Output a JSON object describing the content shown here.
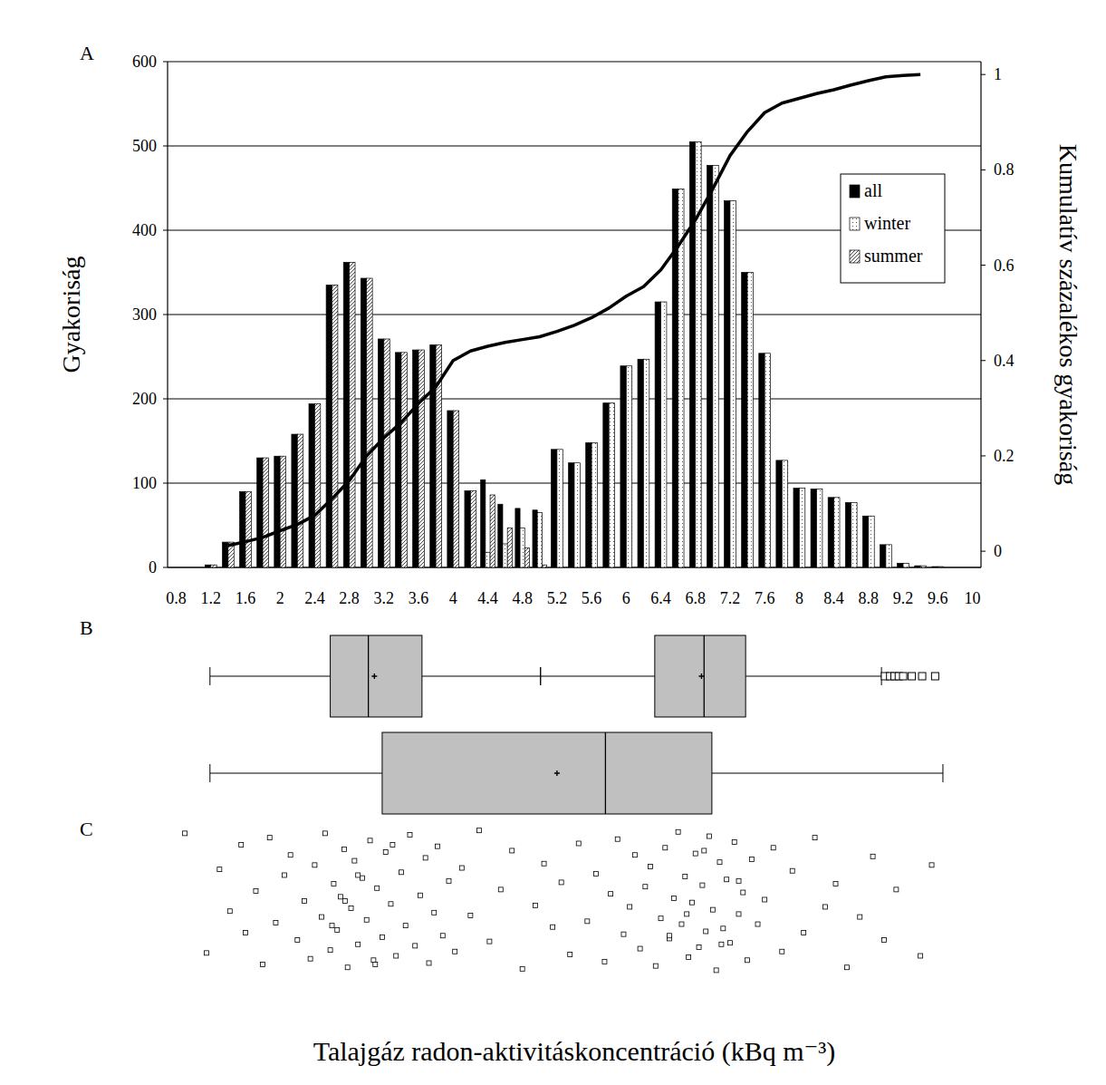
{
  "chart_data": [
    {
      "type": "bar",
      "title": "A",
      "y_label": "Gyakoriság",
      "y2_label": "Kumulatív százalékos gyakoriság",
      "categories": [
        0.8,
        null,
        1.2,
        null,
        1.6,
        null,
        2,
        null,
        2.4,
        null,
        2.8,
        null,
        3.2,
        null,
        3.6,
        null,
        4,
        null,
        4.4,
        null,
        4.8,
        null,
        5.2,
        null,
        5.6,
        null,
        6,
        null,
        6.4,
        null,
        6.8,
        null,
        7.2,
        null,
        7.6,
        null,
        8,
        null,
        8.4,
        null,
        8.8,
        null,
        9.2,
        null,
        9.6,
        null,
        10
      ],
      "series": [
        {
          "name": "all",
          "color": "#000000",
          "values": [
            0,
            0,
            3,
            30,
            90,
            130,
            132,
            158,
            194,
            335,
            362,
            343,
            271,
            255,
            258,
            264,
            186,
            91,
            104,
            75,
            70,
            68,
            140,
            124,
            148,
            195,
            239,
            247,
            315,
            449,
            505,
            477,
            435,
            350,
            254,
            127,
            94,
            93,
            83,
            77,
            61,
            27,
            5,
            2,
            1,
            0,
            0
          ]
        },
        {
          "name": "winter",
          "color": "#ffffff",
          "values": [
            0,
            0,
            0,
            0,
            0,
            0,
            0,
            0,
            0,
            0,
            0,
            0,
            0,
            0,
            0,
            0,
            0,
            0,
            18,
            28,
            47,
            65,
            140,
            124,
            148,
            195,
            239,
            247,
            315,
            449,
            505,
            477,
            435,
            350,
            254,
            127,
            94,
            93,
            83,
            77,
            61,
            27,
            5,
            2,
            1,
            0,
            0
          ]
        },
        {
          "name": "summer",
          "color": "#ffffff",
          "values": [
            0,
            0,
            3,
            30,
            90,
            130,
            132,
            158,
            194,
            335,
            362,
            343,
            271,
            255,
            258,
            264,
            186,
            91,
            86,
            47,
            23,
            3,
            0,
            0,
            0,
            0,
            0,
            0,
            0,
            0,
            0,
            0,
            0,
            0,
            0,
            0,
            0,
            0,
            0,
            0,
            0,
            0,
            0,
            0,
            0,
            0,
            0
          ]
        },
        {
          "type": "line",
          "axis": "y2",
          "color": "#000000",
          "values": [
            null,
            null,
            null,
            0.012,
            0.02,
            0.029,
            0.043,
            0.056,
            0.075,
            0.11,
            0.148,
            0.2,
            0.238,
            0.27,
            0.31,
            0.345,
            0.4,
            0.42,
            0.43,
            0.438,
            0.444,
            0.45,
            0.461,
            0.474,
            0.49,
            0.51,
            0.535,
            0.555,
            0.59,
            0.64,
            0.695,
            0.76,
            0.83,
            0.88,
            0.92,
            0.94,
            0.95,
            0.96,
            0.968,
            0.978,
            0.987,
            0.995,
            0.998,
            1,
            null,
            null,
            null
          ]
        }
      ],
      "ylim": [
        0,
        600
      ],
      "yticks": [
        0,
        100,
        200,
        300,
        400,
        500,
        600
      ],
      "y2lim": [
        -0.034,
        1.027
      ],
      "y2ticks": [
        0,
        0.2,
        0.4,
        0.6,
        0.8,
        1
      ],
      "grid": true,
      "legend": "upper right"
    },
    {
      "type": "box",
      "title": "B",
      "orientation": "horizontal",
      "tick_labels": false,
      "xlim": [
        0.7,
        10.1
      ],
      "series": [
        {
          "boxes": [
            {
              "whisker_low": 1.19,
              "q1": 2.58,
              "median": 3.02,
              "mean": 3.09,
              "q3": 3.64,
              "whisker_high": 5.01,
              "outliers": []
            },
            {
              "whisker_low": 5.01,
              "q1": 6.33,
              "median": 6.9,
              "mean": 6.87,
              "q3": 7.38,
              "whisker_high": 8.95,
              "outliers": [
                8.99,
                9.05,
                9.1,
                9.15,
                9.2,
                9.3,
                9.42,
                9.57
              ]
            }
          ]
        },
        {
          "boxes": [
            {
              "whisker_low": 1.19,
              "q1": 3.18,
              "median": 5.76,
              "mean": 5.2,
              "q3": 6.99,
              "whisker_high": 9.66,
              "outliers": []
            }
          ]
        }
      ]
    },
    {
      "type": "scatter",
      "title": "C",
      "x_label": "Talajgáz radon-aktivitáskoncentráció (kBq m⁻³)",
      "tick_labels": false,
      "marker": "square",
      "color": "#000000",
      "xlim": [
        0.7,
        10.1
      ],
      "ylim": [
        0,
        1
      ],
      "x": [
        1.15,
        1.3,
        1.42,
        1.55,
        1.6,
        1.72,
        1.8,
        1.88,
        1.95,
        2.05,
        2.12,
        2.2,
        2.28,
        2.35,
        2.4,
        2.48,
        2.52,
        2.58,
        2.62,
        2.66,
        2.7,
        2.74,
        2.78,
        2.82,
        2.86,
        2.9,
        2.95,
        3,
        3.04,
        3.08,
        3.12,
        3.18,
        3.22,
        3.28,
        3.34,
        3.4,
        3.45,
        3.5,
        3.56,
        3.62,
        3.68,
        3.72,
        3.78,
        3.82,
        3.88,
        3.95,
        4.02,
        4.1,
        4.2,
        4.3,
        4.42,
        4.55,
        4.68,
        4.8,
        4.95,
        5.05,
        5.15,
        5.25,
        5.35,
        5.45,
        5.55,
        5.65,
        5.75,
        5.82,
        5.9,
        5.97,
        6.04,
        6.1,
        6.16,
        6.22,
        6.28,
        6.34,
        6.4,
        6.45,
        6.5,
        6.55,
        6.6,
        6.64,
        6.68,
        6.72,
        6.76,
        6.8,
        6.84,
        6.88,
        6.92,
        6.96,
        7,
        7.04,
        7.08,
        7.12,
        7.16,
        7.2,
        7.25,
        7.3,
        7.35,
        7.4,
        7.45,
        7.52,
        7.6,
        7.7,
        7.8,
        7.92,
        8.05,
        8.18,
        8.3,
        8.42,
        8.55,
        8.7,
        8.85,
        8.98,
        9.12,
        0.9,
        9.4,
        9.53,
        2.6,
        2.75,
        2.9,
        3.1,
        3.3,
        6.5,
        6.7,
        6.9,
        7.1,
        7.3
      ],
      "values": [
        0.13,
        0.71,
        0.42,
        0.88,
        0.27,
        0.56,
        0.05,
        0.93,
        0.34,
        0.67,
        0.81,
        0.22,
        0.49,
        0.09,
        0.74,
        0.38,
        0.96,
        0.15,
        0.61,
        0.29,
        0.52,
        0.85,
        0.03,
        0.44,
        0.77,
        0.19,
        0.65,
        0.36,
        0.91,
        0.08,
        0.58,
        0.24,
        0.83,
        0.47,
        0.11,
        0.69,
        0.32,
        0.95,
        0.18,
        0.53,
        0.79,
        0.06,
        0.41,
        0.87,
        0.25,
        0.63,
        0.14,
        0.72,
        0.39,
        0.98,
        0.21,
        0.57,
        0.84,
        0.02,
        0.46,
        0.75,
        0.31,
        0.62,
        0.12,
        0.89,
        0.35,
        0.68,
        0.07,
        0.54,
        0.92,
        0.26,
        0.45,
        0.81,
        0.16,
        0.59,
        0.73,
        0.04,
        0.37,
        0.86,
        0.23,
        0.51,
        0.97,
        0.33,
        0.66,
        0.1,
        0.48,
        0.82,
        0.17,
        0.6,
        0.28,
        0.94,
        0.43,
        0.01,
        0.76,
        0.3,
        0.64,
        0.2,
        0.9,
        0.4,
        0.55,
        0.08,
        0.78,
        0.33,
        0.5,
        0.86,
        0.14,
        0.7,
        0.27,
        0.93,
        0.45,
        0.61,
        0.03,
        0.38,
        0.8,
        0.22,
        0.57,
        0.96,
        0.11,
        0.74,
        0.32,
        0.49,
        0.67,
        0.05,
        0.88,
        0.25,
        0.4,
        0.84,
        0.19,
        0.63
      ]
    }
  ]
}
